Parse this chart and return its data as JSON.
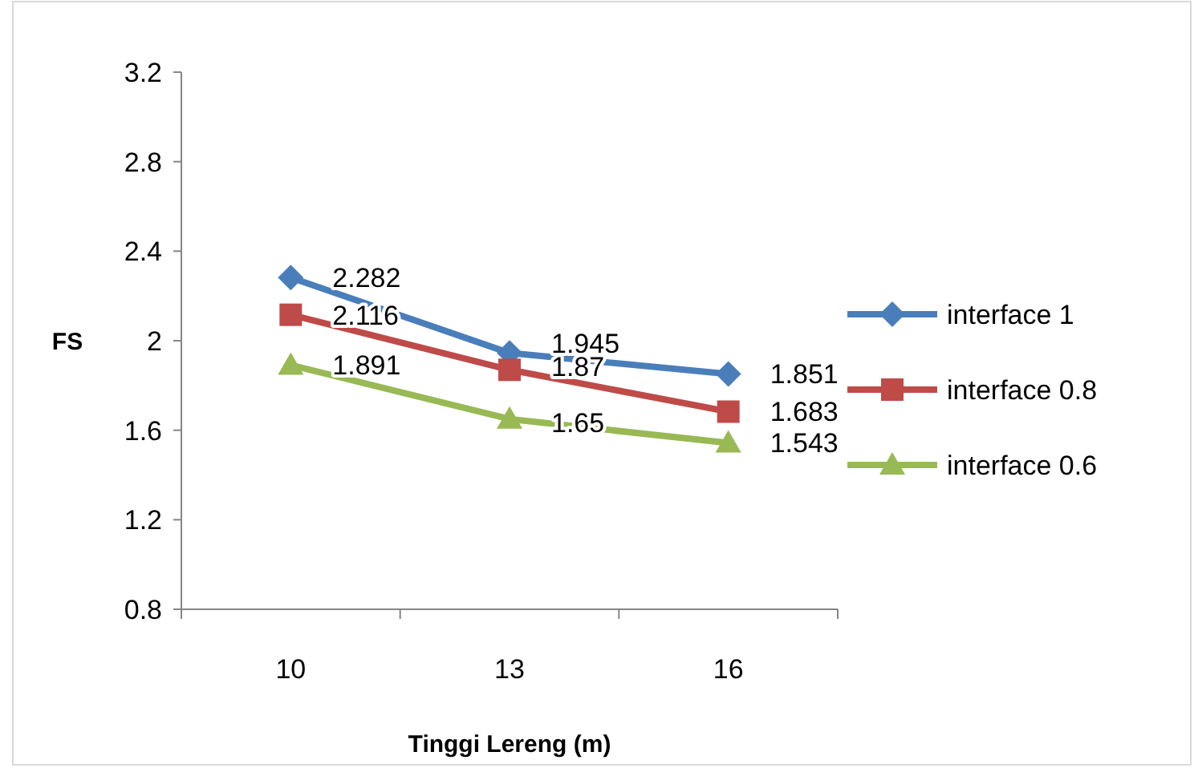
{
  "chart_data": {
    "type": "line",
    "xlabel": "Tinggi Lereng (m)",
    "ylabel": "FS",
    "categories": [
      "10",
      "13",
      "16"
    ],
    "series": [
      {
        "name": "interface 1",
        "color": "#4a7ebb",
        "marker": "diamond",
        "values": [
          2.282,
          1.945,
          1.851
        ]
      },
      {
        "name": "interface 0.8",
        "color": "#be4b48",
        "marker": "square",
        "values": [
          2.116,
          1.87,
          1.683
        ]
      },
      {
        "name": "interface 0.6",
        "color": "#98b954",
        "marker": "triangle",
        "values": [
          1.891,
          1.65,
          1.543
        ]
      }
    ],
    "ylim": [
      0.8,
      3.2
    ],
    "yticks": [
      0.8,
      1.2,
      1.6,
      2,
      2.4,
      2.8,
      3.2
    ],
    "grid": false,
    "legend": "right",
    "data_labels": true,
    "line_style": "solid"
  }
}
